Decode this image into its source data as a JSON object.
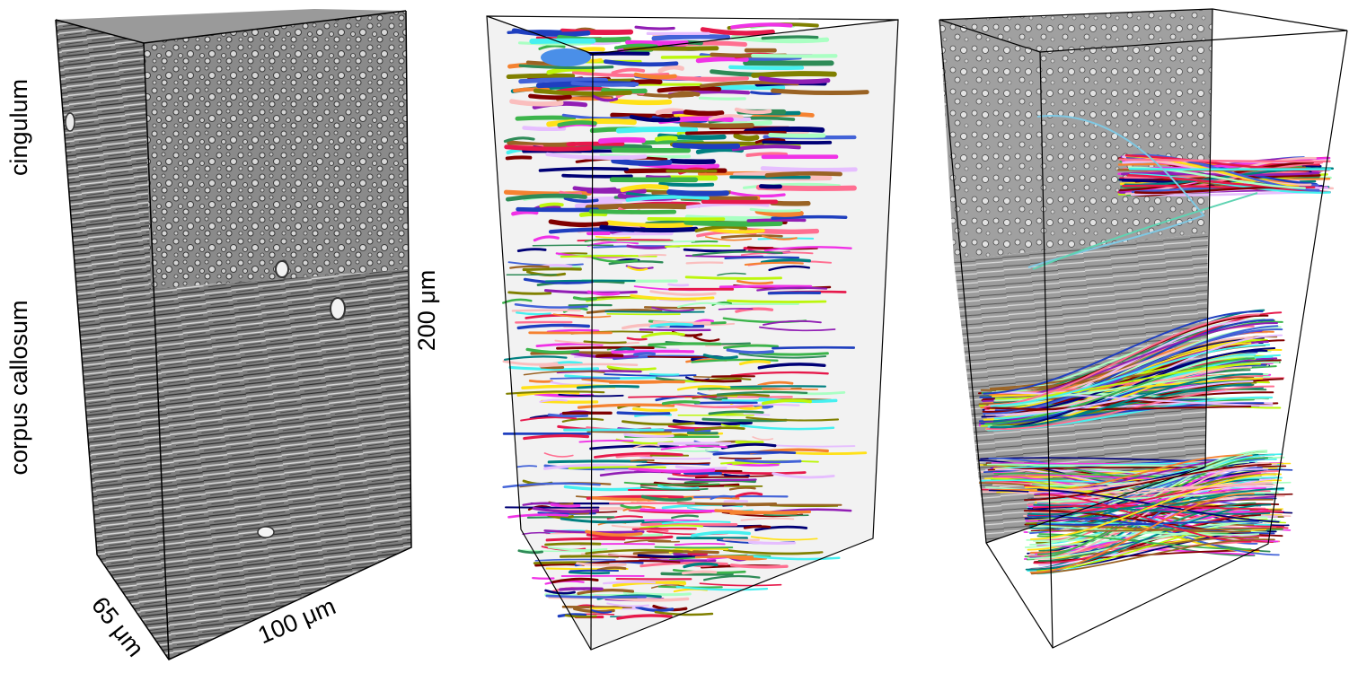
{
  "labels": {
    "region_top": "cingulum",
    "region_bottom": "corpus callosum",
    "dim_height": "200 μm",
    "dim_width": "100 μm",
    "dim_depth": "65 μm"
  },
  "panels": [
    {
      "id": "em-volume",
      "description_icon": "em-grayscale-block"
    },
    {
      "id": "dense-segmentation",
      "description_icon": "colored-axon-segmentation-block"
    },
    {
      "id": "axon-bundles",
      "description_icon": "selected-axon-bundles"
    }
  ],
  "colors": {
    "em_dark": "#3a3a3a",
    "em_mid": "#7d7d7d",
    "em_light": "#c8c8c8",
    "box_edge": "#000000",
    "fiber_palette": [
      "#e6194b",
      "#3cb44b",
      "#ffe119",
      "#4363d8",
      "#f58231",
      "#911eb4",
      "#46f0f0",
      "#f032e6",
      "#bcf60c",
      "#fabebe",
      "#008080",
      "#e6beff",
      "#9a6324",
      "#800000",
      "#aaffc3",
      "#808000",
      "#000075",
      "#1f3fbf",
      "#2e8b57",
      "#ff6f91"
    ]
  }
}
